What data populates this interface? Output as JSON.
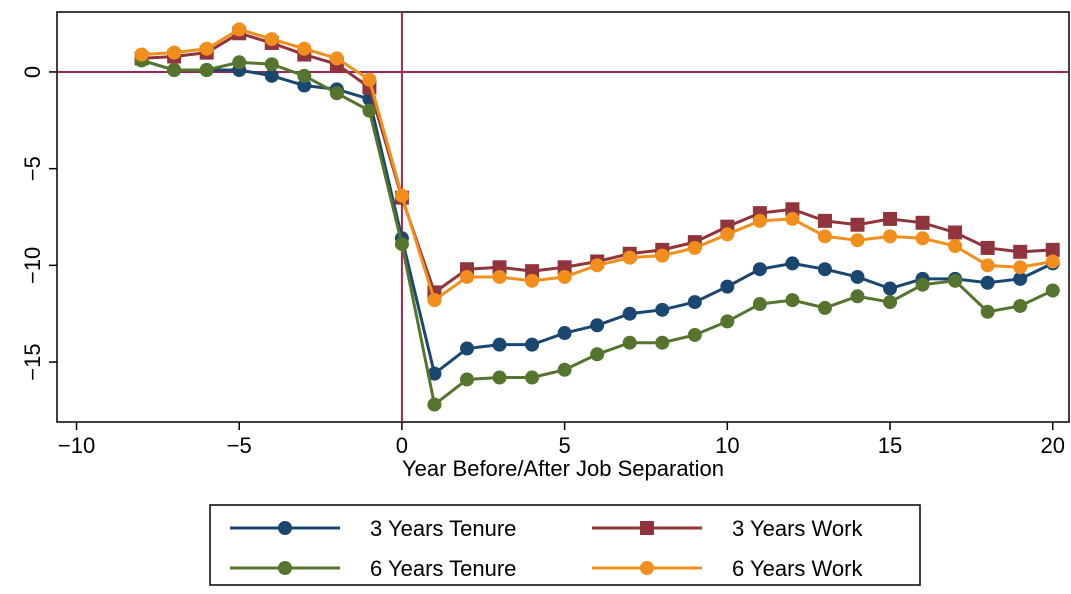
{
  "chart_data": {
    "type": "line",
    "xlabel": "Year Before/After Job Separation",
    "x": [
      -8,
      -7,
      -6,
      -5,
      -4,
      -3,
      -2,
      -1,
      0,
      1,
      2,
      3,
      4,
      5,
      6,
      7,
      8,
      9,
      10,
      11,
      12,
      13,
      14,
      15,
      16,
      17,
      18,
      19,
      20
    ],
    "series": [
      {
        "name": "3 Years Tenure",
        "color": "#1a476f",
        "marker": "circle",
        "values": [
          0.6,
          0.1,
          0.1,
          0.1,
          -0.2,
          -0.7,
          -0.9,
          -1.4,
          -8.6,
          -15.6,
          -14.3,
          -14.1,
          -14.1,
          -13.5,
          -13.1,
          -12.5,
          -12.3,
          -11.9,
          -11.1,
          -10.2,
          -9.9,
          -10.2,
          -10.6,
          -11.2,
          -10.7,
          -10.7,
          -10.9,
          -10.7,
          -9.9
        ]
      },
      {
        "name": "3 Years Work",
        "color": "#90353b",
        "marker": "square",
        "values": [
          0.7,
          0.8,
          1.0,
          2.0,
          1.5,
          0.9,
          0.4,
          -0.8,
          -6.5,
          -11.4,
          -10.2,
          -10.1,
          -10.3,
          -10.1,
          -9.8,
          -9.4,
          -9.2,
          -8.8,
          -8.0,
          -7.3,
          -7.1,
          -7.7,
          -7.9,
          -7.6,
          -7.8,
          -8.3,
          -9.1,
          -9.3,
          -9.2
        ]
      },
      {
        "name": "6 Years Tenure",
        "color": "#55752f",
        "marker": "circle",
        "values": [
          0.6,
          0.1,
          0.1,
          0.5,
          0.4,
          -0.2,
          -1.1,
          -2.0,
          -8.9,
          -17.2,
          -15.9,
          -15.8,
          -15.8,
          -15.4,
          -14.6,
          -14.0,
          -14.0,
          -13.6,
          -12.9,
          -12.0,
          -11.8,
          -12.2,
          -11.6,
          -11.9,
          -11.0,
          -10.8,
          -12.4,
          -12.1,
          -11.3
        ]
      },
      {
        "name": "6 Years Work",
        "color": "#f28e1c",
        "marker": "circle",
        "values": [
          0.9,
          1.0,
          1.2,
          2.2,
          1.7,
          1.2,
          0.7,
          -0.4,
          -6.4,
          -11.8,
          -10.6,
          -10.6,
          -10.8,
          -10.6,
          -10.0,
          -9.6,
          -9.5,
          -9.1,
          -8.4,
          -7.7,
          -7.6,
          -8.5,
          -8.7,
          -8.5,
          -8.6,
          -9.0,
          -10.0,
          -10.1,
          -9.8
        ]
      }
    ],
    "xlim": [
      -10.6,
      20.5
    ],
    "ylim": [
      -18.1,
      3.1
    ],
    "xticks": [
      {
        "value": -10,
        "label": "−10"
      },
      {
        "value": -5,
        "label": "−5"
      },
      0,
      5,
      10,
      15,
      20
    ],
    "yticks": [
      {
        "value": -15,
        "label": "−15"
      },
      {
        "value": -10,
        "label": "−10"
      },
      {
        "value": -5,
        "label": "−5"
      },
      0
    ],
    "reference_lines": {
      "x": 0,
      "y": 0,
      "color": "#a0264a"
    },
    "legend": "bottom"
  }
}
